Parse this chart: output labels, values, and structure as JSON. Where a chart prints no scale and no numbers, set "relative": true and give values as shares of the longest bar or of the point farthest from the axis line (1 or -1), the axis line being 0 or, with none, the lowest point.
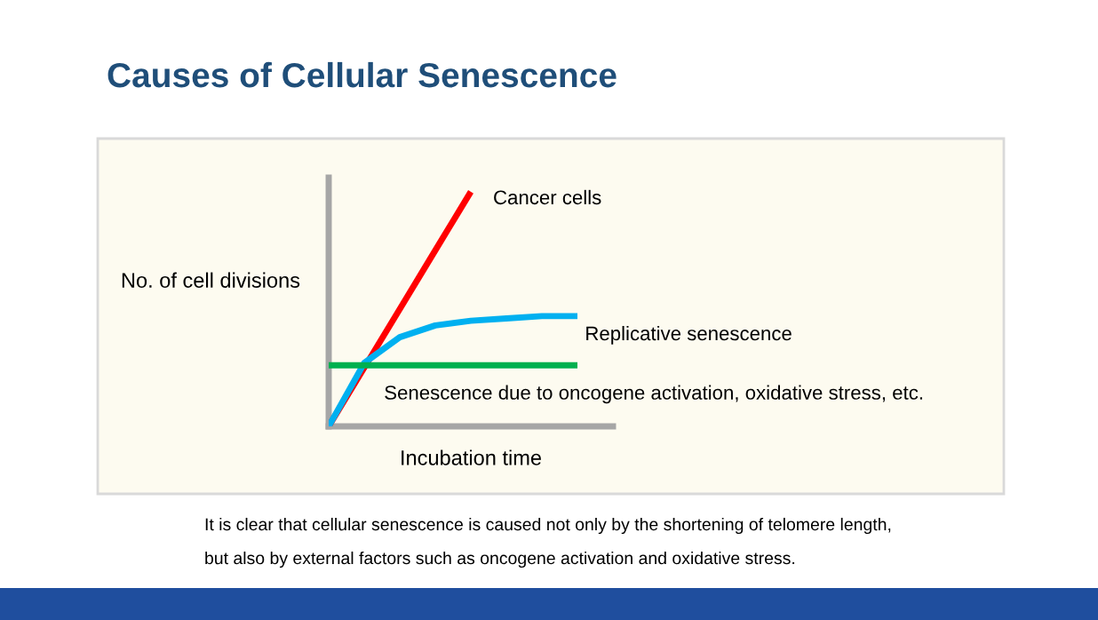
{
  "chart_data": {
    "type": "line",
    "title": "Causes of Cellular Senescence",
    "xlabel": "Incubation time",
    "ylabel": "No. of cell divisions",
    "relative": true,
    "legend": false,
    "grid": false,
    "marker": "none",
    "line_style": "solid",
    "categories": [
      null,
      null,
      null,
      null,
      null,
      null,
      null,
      null,
      null
    ],
    "series": [
      {
        "name": "Cancer cells",
        "color": "#ff0000",
        "values": [
          0,
          0.25,
          0.5,
          0.75,
          1,
          null,
          null,
          null,
          null
        ]
      },
      {
        "name": "Replicative senescence",
        "color": "#00b0f0",
        "values": [
          0,
          0.27,
          0.38,
          0.43,
          0.45,
          0.46,
          0.47,
          0.47,
          null
        ]
      },
      {
        "name": "Senescence due to oncogene activation, oxidative stress, etc.",
        "color": "#00b050",
        "values": [
          0.26,
          0.26,
          0.26,
          0.26,
          0.26,
          0.26,
          0.26,
          0.26,
          null
        ]
      }
    ],
    "annotations": [
      "It is clear that cellular senescence is caused not only by the shortening of telomere length,",
      "but also by external factors such as oncogene activation and oxidative stress."
    ]
  }
}
